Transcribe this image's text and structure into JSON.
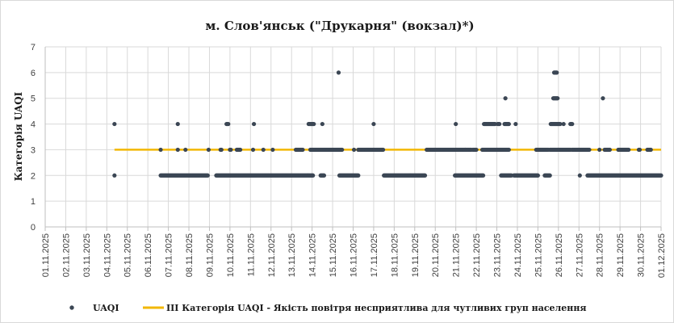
{
  "chart_data": {
    "type": "scatter",
    "title": "м. Слов'янськ (\"Друкарня\" (вокзал)*)",
    "xlabel": "",
    "ylabel": "Категорія UAQI",
    "ylim": [
      0,
      7
    ],
    "yticks": [
      "0",
      "1",
      "2",
      "3",
      "4",
      "5",
      "6",
      "7"
    ],
    "xlim": [
      "01.11.2025",
      "01.12.2025"
    ],
    "xticks": [
      "01.11.2025",
      "02.11.2025",
      "03.11.2025",
      "04.11.2025",
      "05.11.2025",
      "06.11.2025",
      "07.11.2025",
      "08.11.2025",
      "09.11.2025",
      "10.11.2025",
      "11.11.2025",
      "12.11.2025",
      "13.11.2025",
      "14.11.2025",
      "15.11.2025",
      "16.11.2025",
      "17.11.2025",
      "18.11.2025",
      "19.11.2025",
      "20.11.2025",
      "21.11.2025",
      "22.11.2025",
      "23.11.2025",
      "24.11.2025",
      "25.11.2025",
      "26.11.2025",
      "27.11.2025",
      "28.11.2025",
      "29.11.2025",
      "30.11.2025",
      "01.12.2025"
    ],
    "grid": true,
    "legend_position": "bottom",
    "series": [
      {
        "name": "UAQI",
        "kind": "points",
        "color": "#3b4654",
        "segments": [
          {
            "start": "04.11.2025 09:00",
            "end": "04.11.2025 09:00",
            "value": 4
          },
          {
            "start": "04.11.2025 09:00",
            "end": "04.11.2025 09:00",
            "value": 2
          },
          {
            "start": "06.11.2025 15:00",
            "end": "06.11.2025 15:00",
            "value": 3
          },
          {
            "start": "06.11.2025 15:00",
            "end": "08.11.2025 22:00",
            "value": 2
          },
          {
            "start": "07.11.2025 11:00",
            "end": "07.11.2025 11:00",
            "value": 4
          },
          {
            "start": "07.11.2025 11:00",
            "end": "07.11.2025 11:00",
            "value": 3
          },
          {
            "start": "07.11.2025 20:00",
            "end": "07.11.2025 20:00",
            "value": 3
          },
          {
            "start": "08.11.2025 23:00",
            "end": "08.11.2025 23:00",
            "value": 3
          },
          {
            "start": "09.11.2025 08:00",
            "end": "13.11.2025 08:00",
            "value": 2
          },
          {
            "start": "09.11.2025 13:00",
            "end": "09.11.2025 14:00",
            "value": 3
          },
          {
            "start": "09.11.2025 20:00",
            "end": "09.11.2025 22:00",
            "value": 4
          },
          {
            "start": "10.11.2025 00:00",
            "end": "10.11.2025 01:00",
            "value": 3
          },
          {
            "start": "10.11.2025 08:00",
            "end": "10.11.2025 12:00",
            "value": 3
          },
          {
            "start": "11.11.2025 03:00",
            "end": "11.11.2025 03:00",
            "value": 3
          },
          {
            "start": "11.11.2025 04:00",
            "end": "11.11.2025 04:00",
            "value": 4
          },
          {
            "start": "11.11.2025 15:00",
            "end": "11.11.2025 15:00",
            "value": 3
          },
          {
            "start": "12.11.2025 02:00",
            "end": "12.11.2025 02:00",
            "value": 3
          },
          {
            "start": "13.11.2025 05:00",
            "end": "13.11.2025 13:00",
            "value": 3
          },
          {
            "start": "13.11.2025 09:00",
            "end": "14.11.2025 01:00",
            "value": 2
          },
          {
            "start": "13.11.2025 20:00",
            "end": "14.11.2025 02:00",
            "value": 4
          },
          {
            "start": "13.11.2025 22:00",
            "end": "15.11.2025 11:00",
            "value": 3
          },
          {
            "start": "14.11.2025 12:00",
            "end": "14.11.2025 12:00",
            "value": 4
          },
          {
            "start": "14.11.2025 10:00",
            "end": "14.11.2025 14:00",
            "value": 2
          },
          {
            "start": "15.11.2025 07:00",
            "end": "15.11.2025 07:00",
            "value": 6
          },
          {
            "start": "15.11.2025 08:00",
            "end": "16.11.2025 06:00",
            "value": 2
          },
          {
            "start": "16.11.2025 01:00",
            "end": "16.11.2025 01:00",
            "value": 3
          },
          {
            "start": "16.11.2025 06:00",
            "end": "17.11.2025 11:00",
            "value": 3
          },
          {
            "start": "17.11.2025 00:00",
            "end": "17.11.2025 00:00",
            "value": 4
          },
          {
            "start": "17.11.2025 12:00",
            "end": "19.11.2025 12:00",
            "value": 2
          },
          {
            "start": "19.11.2025 14:00",
            "end": "21.11.2025 18:00",
            "value": 3
          },
          {
            "start": "21.11.2025 00:00",
            "end": "21.11.2025 00:00",
            "value": 4
          },
          {
            "start": "20.11.2025 23:00",
            "end": "22.11.2025 08:00",
            "value": 2
          },
          {
            "start": "21.11.2025 11:00",
            "end": "21.11.2025 11:00",
            "value": 3
          },
          {
            "start": "21.11.2025 20:00",
            "end": "22.11.2025 00:00",
            "value": 3
          },
          {
            "start": "22.11.2025 07:00",
            "end": "23.11.2025 13:00",
            "value": 3
          },
          {
            "start": "22.11.2025 09:00",
            "end": "22.11.2025 22:00",
            "value": 4
          },
          {
            "start": "23.11.2025 01:00",
            "end": "23.11.2025 03:00",
            "value": 4
          },
          {
            "start": "23.11.2025 05:00",
            "end": "23.11.2025 17:00",
            "value": 2
          },
          {
            "start": "23.11.2025 09:00",
            "end": "23.11.2025 14:00",
            "value": 4
          },
          {
            "start": "23.11.2025 10:00",
            "end": "23.11.2025 10:00",
            "value": 5
          },
          {
            "start": "23.11.2025 14:00",
            "end": "23.11.2025 14:00",
            "value": 3
          },
          {
            "start": "23.11.2025 22:00",
            "end": "23.11.2025 22:00",
            "value": 4
          },
          {
            "start": "23.11.2025 20:00",
            "end": "25.11.2025 00:00",
            "value": 2
          },
          {
            "start": "24.11.2025 22:00",
            "end": "25.11.2025 12:00",
            "value": 3
          },
          {
            "start": "25.11.2025 08:00",
            "end": "25.11.2025 14:00",
            "value": 2
          },
          {
            "start": "25.11.2025 14:00",
            "end": "26.11.2025 14:00",
            "value": 3
          },
          {
            "start": "25.11.2025 15:00",
            "end": "26.11.2025 02:00",
            "value": 4
          },
          {
            "start": "25.11.2025 18:00",
            "end": "25.11.2025 23:00",
            "value": 5
          },
          {
            "start": "25.11.2025 19:00",
            "end": "25.11.2025 22:00",
            "value": 6
          },
          {
            "start": "26.11.2025 06:00",
            "end": "26.11.2025 06:00",
            "value": 4
          },
          {
            "start": "26.11.2025 14:00",
            "end": "26.11.2025 16:00",
            "value": 4
          },
          {
            "start": "26.11.2025 16:00",
            "end": "27.11.2025 12:00",
            "value": 3
          },
          {
            "start": "27.11.2025 01:00",
            "end": "27.11.2025 01:00",
            "value": 2
          },
          {
            "start": "27.11.2025 10:00",
            "end": "28.11.2025 23:00",
            "value": 2
          },
          {
            "start": "28.11.2025 00:00",
            "end": "28.11.2025 00:00",
            "value": 3
          },
          {
            "start": "28.11.2025 04:00",
            "end": "28.11.2025 04:00",
            "value": 5
          },
          {
            "start": "28.11.2025 06:00",
            "end": "28.11.2025 12:00",
            "value": 3
          },
          {
            "start": "28.11.2025 22:00",
            "end": "29.11.2025 10:00",
            "value": 3
          },
          {
            "start": "29.11.2025 00:00",
            "end": "01.12.2025 00:00",
            "value": 2
          },
          {
            "start": "29.11.2025 22:00",
            "end": "29.11.2025 23:00",
            "value": 3
          },
          {
            "start": "30.11.2025 08:00",
            "end": "30.11.2025 12:00",
            "value": 3
          }
        ]
      },
      {
        "name": "III Категорія UAQI - Якість повітря несприятлива для чутливих груп населення",
        "kind": "line",
        "color": "#f2b705",
        "value": 3,
        "start": "04.11.2025 09:00",
        "end": "01.12.2025 00:00"
      }
    ]
  }
}
